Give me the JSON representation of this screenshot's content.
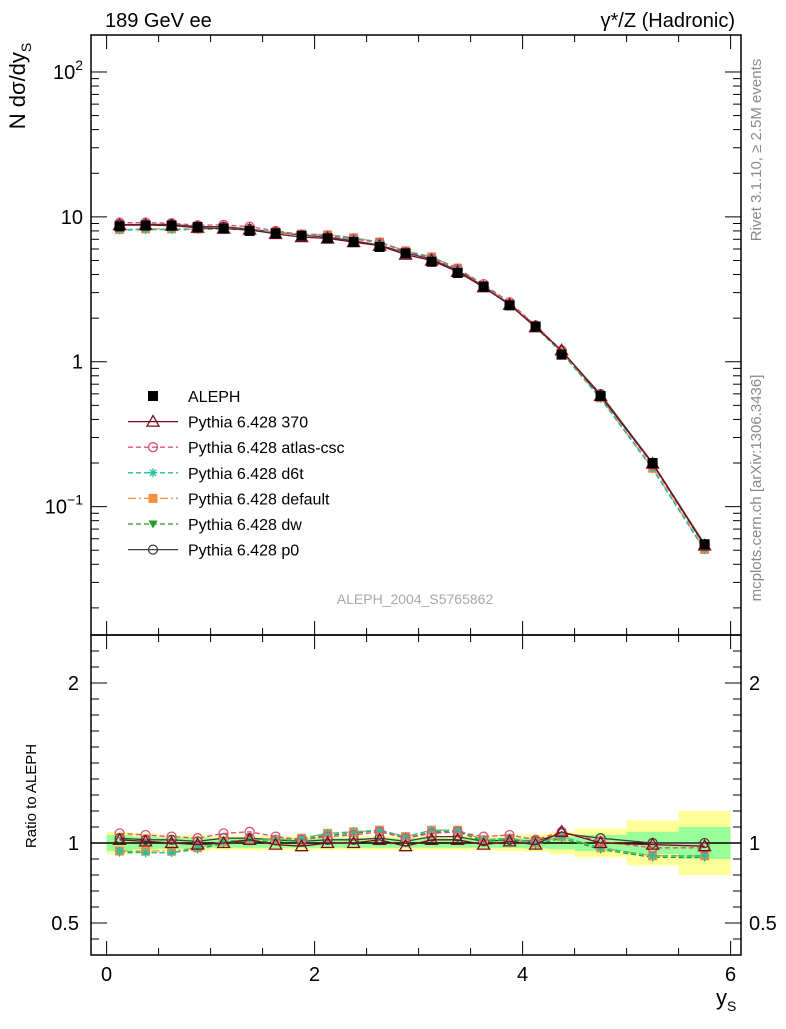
{
  "header": {
    "left": "189 GeV ee",
    "right": "γ*/Z (Hadronic)"
  },
  "side": {
    "rivet": "Rivet 3.1.10, ≥ 2.5M events",
    "site": "mcplots.cern.ch [arXiv:1306.3436]"
  },
  "watermark": "ALEPH_2004_S5765862",
  "chart_data": {
    "type": "line",
    "title": "",
    "xlabel": "y_S",
    "ylabel": "N dσ/dy_S",
    "ratio_ylabel": "Ratio to ALEPH",
    "xlim": [
      -0.15,
      6.1
    ],
    "ylim": [
      0.013,
      180
    ],
    "ylog": true,
    "ratio_ylim": [
      0.3,
      2.3
    ],
    "x_ticks": [
      0,
      2,
      4,
      6
    ],
    "x_tick_labels": [
      "0",
      "2",
      "4",
      "6"
    ],
    "y_ticks": [
      100,
      10,
      1,
      0.1
    ],
    "y_tick_labels": [
      {
        "base": "10",
        "exp": "2"
      },
      {
        "base": "10",
        "exp": ""
      },
      {
        "base": "1",
        "exp": ""
      },
      {
        "base": "10",
        "exp": "−1"
      }
    ],
    "ratio_ticks": [
      2,
      1,
      0.5
    ],
    "ratio_tick_labels": [
      "2",
      "1",
      "0.5"
    ],
    "legend_position": "lower-left",
    "x": [
      0.125,
      0.375,
      0.625,
      0.875,
      1.125,
      1.375,
      1.625,
      1.875,
      2.125,
      2.375,
      2.625,
      2.875,
      3.125,
      3.375,
      3.625,
      3.875,
      4.125,
      4.375,
      4.75,
      5.25,
      5.75
    ],
    "bins": [
      [
        0,
        0.25
      ],
      [
        0.25,
        0.5
      ],
      [
        0.5,
        0.75
      ],
      [
        0.75,
        1.0
      ],
      [
        1.0,
        1.25
      ],
      [
        1.25,
        1.5
      ],
      [
        1.5,
        1.75
      ],
      [
        1.75,
        2.0
      ],
      [
        2.0,
        2.25
      ],
      [
        2.25,
        2.5
      ],
      [
        2.5,
        2.75
      ],
      [
        2.75,
        3.0
      ],
      [
        3.0,
        3.25
      ],
      [
        3.25,
        3.5
      ],
      [
        3.5,
        3.75
      ],
      [
        3.75,
        4.0
      ],
      [
        4.0,
        4.25
      ],
      [
        4.25,
        4.5
      ],
      [
        4.5,
        5.0
      ],
      [
        5.0,
        5.5
      ],
      [
        5.5,
        6.0
      ]
    ],
    "data": {
      "name": "ALEPH",
      "values": [
        8.6,
        8.7,
        8.7,
        8.5,
        8.3,
        8.0,
        7.7,
        7.4,
        7.1,
        6.7,
        6.2,
        5.6,
        4.9,
        4.1,
        3.3,
        2.45,
        1.75,
        1.12,
        0.58,
        0.2,
        0.055
      ],
      "band_inner": [
        0.05,
        0.04,
        0.035,
        0.035,
        0.03,
        0.03,
        0.03,
        0.03,
        0.03,
        0.03,
        0.03,
        0.03,
        0.03,
        0.03,
        0.03,
        0.03,
        0.035,
        0.04,
        0.05,
        0.07,
        0.1
      ],
      "band_outer": [
        0.07,
        0.06,
        0.05,
        0.05,
        0.045,
        0.045,
        0.045,
        0.045,
        0.045,
        0.045,
        0.045,
        0.045,
        0.045,
        0.045,
        0.045,
        0.05,
        0.055,
        0.07,
        0.09,
        0.14,
        0.2
      ]
    },
    "series": [
      {
        "name": "Pythia 6.428 370",
        "color": "#7a0a1e",
        "dash": "",
        "marker": "triangle-open",
        "ratio": [
          1.02,
          1.01,
          1.0,
          0.99,
          1.0,
          1.02,
          0.99,
          0.98,
          1.0,
          1.0,
          1.02,
          0.98,
          1.02,
          1.02,
          0.99,
          1.01,
          0.99,
          1.07,
          1.0,
          0.99,
          0.98
        ]
      },
      {
        "name": "Pythia 6.428 atlas-csc",
        "color": "#e0506e",
        "dash": "5,3",
        "marker": "circle-open",
        "ratio": [
          1.06,
          1.05,
          1.04,
          1.03,
          1.06,
          1.07,
          1.04,
          1.02,
          1.04,
          1.05,
          1.07,
          1.03,
          1.06,
          1.07,
          1.04,
          1.05,
          1.02,
          1.07,
          1.01,
          0.97,
          0.97
        ]
      },
      {
        "name": "Pythia 6.428 d6t",
        "color": "#22c0a0",
        "dash": "5,3",
        "marker": "star",
        "ratio": [
          0.95,
          0.94,
          0.94,
          0.97,
          1.01,
          1.02,
          1.02,
          1.03,
          1.06,
          1.07,
          1.08,
          1.04,
          1.08,
          1.08,
          1.02,
          1.03,
          1.0,
          1.04,
          0.97,
          0.92,
          0.92
        ]
      },
      {
        "name": "Pythia 6.428 default",
        "color": "#f59042",
        "dash": "8,3,2,3",
        "marker": "square",
        "ratio": [
          0.95,
          0.95,
          0.95,
          0.97,
          1.01,
          1.02,
          1.02,
          1.03,
          1.06,
          1.07,
          1.08,
          1.04,
          1.08,
          1.08,
          1.02,
          1.03,
          1.0,
          1.04,
          0.97,
          0.92,
          0.92
        ]
      },
      {
        "name": "Pythia 6.428 dw",
        "color": "#20a020",
        "dash": "5,3",
        "marker": "triangle-down",
        "ratio": [
          0.94,
          0.94,
          0.94,
          0.96,
          1.0,
          1.01,
          1.01,
          1.02,
          1.05,
          1.06,
          1.08,
          1.03,
          1.07,
          1.07,
          1.01,
          1.02,
          0.99,
          1.03,
          0.96,
          0.91,
          0.91
        ]
      },
      {
        "name": "Pythia 6.428 p0",
        "color": "#404040",
        "dash": "",
        "marker": "circle-open",
        "ratio": [
          1.03,
          1.02,
          1.02,
          1.01,
          1.03,
          1.03,
          1.02,
          1.01,
          1.02,
          1.02,
          1.03,
          1.01,
          1.04,
          1.04,
          1.01,
          1.02,
          1.01,
          1.06,
          1.03,
          1.0,
          1.0
        ]
      }
    ]
  }
}
